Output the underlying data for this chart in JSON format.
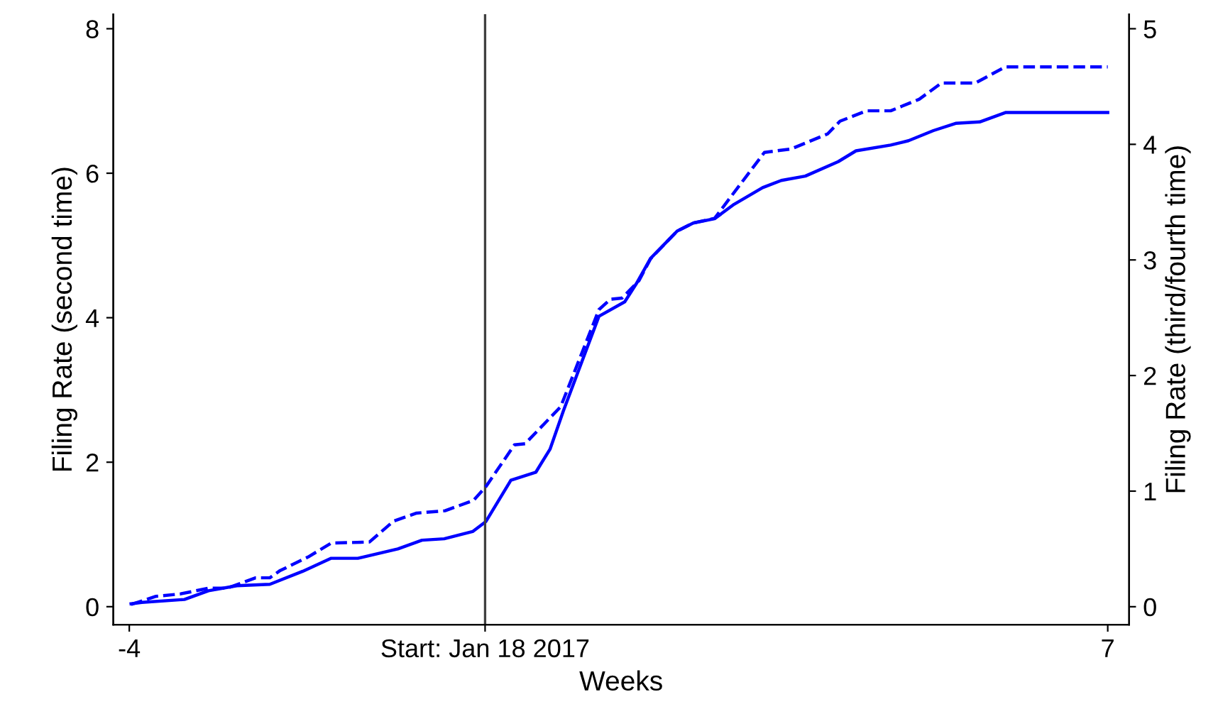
{
  "chart_data": {
    "type": "line",
    "xlabel": "Weeks",
    "ylabel": "Filing Rate (second time)",
    "y2label": "Filing Rate (third/fourth time)",
    "xlim": [
      -4.18,
      7.24
    ],
    "xticks": [
      -4,
      {
        "value": 0,
        "label": "Start: Jan 18 2017"
      },
      7
    ],
    "ylim": [
      -0.25,
      8.2
    ],
    "yticks": [
      0,
      2,
      4,
      6,
      8
    ],
    "y2lim": [
      -0.156,
      5.125
    ],
    "y2ticks": [
      0,
      1,
      2,
      3,
      4,
      5
    ],
    "grid": false,
    "legend": false,
    "ref_lines": [
      {
        "axis": "x",
        "value": 0,
        "label": null,
        "color": "#404040"
      }
    ],
    "series": [
      {
        "color": "#0000ff",
        "line_style": "solid",
        "x": [
          -3.98,
          -3.86,
          -3.38,
          -3.11,
          -2.79,
          -2.42,
          -2.05,
          -1.73,
          -1.43,
          -0.98,
          -0.71,
          -0.46,
          -0.14,
          0.01,
          0.29,
          0.57,
          0.73,
          0.88,
          1.28,
          1.57,
          1.7,
          1.86,
          2.16,
          2.34,
          2.58,
          2.8,
          3.12,
          3.33,
          3.6,
          3.97,
          4.17,
          4.56,
          4.76,
          5.04,
          5.29,
          5.56,
          5.85,
          7.0
        ],
        "values": [
          0.04,
          0.06,
          0.1,
          0.22,
          0.29,
          0.31,
          0.49,
          0.67,
          0.67,
          0.8,
          0.92,
          0.94,
          1.04,
          1.18,
          1.75,
          1.86,
          2.18,
          2.71,
          4.02,
          4.22,
          4.47,
          4.82,
          5.2,
          5.31,
          5.37,
          5.57,
          5.8,
          5.9,
          5.96,
          6.16,
          6.31,
          6.39,
          6.45,
          6.59,
          6.69,
          6.71,
          6.84,
          6.84
        ]
      },
      {
        "color": "#0000ff",
        "line_style": "dashed",
        "axis": "y2",
        "x": [
          -3.98,
          -3.7,
          -3.43,
          -3.11,
          -2.9,
          -2.58,
          -2.42,
          -2.31,
          -1.99,
          -1.73,
          -1.3,
          -1.03,
          -0.77,
          -0.45,
          -0.13,
          0.01,
          0.33,
          0.45,
          0.85,
          1.28,
          1.41,
          1.54,
          1.73,
          1.86,
          2.16,
          2.34,
          2.58,
          3.14,
          3.44,
          3.85,
          3.99,
          4.29,
          4.56,
          4.88,
          5.13,
          5.51,
          5.85,
          7.0
        ],
        "values": [
          0.02,
          0.09,
          0.11,
          0.16,
          0.16,
          0.25,
          0.25,
          0.31,
          0.43,
          0.55,
          0.56,
          0.74,
          0.81,
          0.83,
          0.92,
          1.04,
          1.4,
          1.41,
          1.73,
          2.57,
          2.66,
          2.67,
          2.82,
          3.01,
          3.25,
          3.32,
          3.36,
          3.93,
          3.96,
          4.09,
          4.2,
          4.29,
          4.29,
          4.39,
          4.53,
          4.53,
          4.67,
          4.67
        ]
      }
    ]
  }
}
